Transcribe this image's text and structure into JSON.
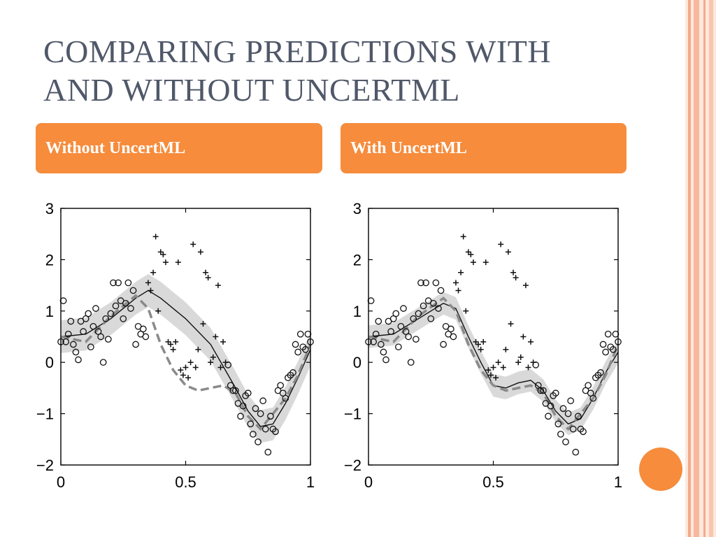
{
  "slide": {
    "title": "COMPARING PREDICTIONS WITH\nAND WITHOUT UNCERTML",
    "colors": {
      "accent": "#f68c3c",
      "title_text": "#505869",
      "edge_light": "#fbd9c8",
      "edge_dark": "#f3a98a"
    },
    "left_header": "Without UncertML",
    "right_header": "With UncertML"
  },
  "chart_data": [
    {
      "type": "scatter",
      "title": "Without UncertML",
      "xlim": [
        0,
        1
      ],
      "ylim": [
        -2,
        3
      ],
      "x_ticks": [
        "0",
        "0.5",
        "1"
      ],
      "y_ticks": [
        "3",
        "2",
        "1",
        "0",
        "−1",
        "−2"
      ],
      "grid": false,
      "series": [
        {
          "marker": "circle",
          "x": [
            0.0,
            0.01,
            0.02,
            0.03,
            0.04,
            0.05,
            0.06,
            0.07,
            0.08,
            0.09,
            0.1,
            0.11,
            0.12,
            0.13,
            0.14,
            0.15,
            0.16,
            0.17,
            0.18,
            0.19,
            0.2,
            0.21,
            0.22,
            0.23,
            0.24,
            0.25,
            0.26,
            0.27,
            0.28,
            0.29,
            0.3,
            0.31,
            0.32,
            0.33,
            0.34,
            0.67,
            0.68,
            0.69,
            0.7,
            0.71,
            0.72,
            0.73,
            0.74,
            0.75,
            0.76,
            0.77,
            0.78,
            0.79,
            0.8,
            0.81,
            0.82,
            0.83,
            0.84,
            0.85,
            0.86,
            0.87,
            0.88,
            0.89,
            0.9,
            0.91,
            0.92,
            0.93,
            0.94,
            0.95,
            0.96,
            0.97,
            0.98,
            0.99,
            1.0
          ],
          "y": [
            0.4,
            1.2,
            0.4,
            0.55,
            0.8,
            0.35,
            0.2,
            0.05,
            0.8,
            0.6,
            0.85,
            0.95,
            0.3,
            0.7,
            1.05,
            0.6,
            0.5,
            0.0,
            0.85,
            0.45,
            0.95,
            1.55,
            1.1,
            1.55,
            1.2,
            0.85,
            1.15,
            1.55,
            1.05,
            1.4,
            0.35,
            0.7,
            0.55,
            0.65,
            0.5,
            -0.05,
            -0.45,
            -0.55,
            -0.55,
            -0.8,
            -1.05,
            -0.85,
            -0.65,
            -0.6,
            -1.2,
            -1.4,
            -0.9,
            -1.55,
            -1.0,
            -0.75,
            -1.3,
            -1.75,
            -1.05,
            -1.3,
            -1.35,
            -0.55,
            -0.45,
            -0.6,
            -0.7,
            -0.3,
            -0.25,
            -0.2,
            0.35,
            0.2,
            0.55,
            0.3,
            0.25,
            0.55,
            0.4
          ]
        },
        {
          "marker": "plus",
          "x": [
            0.35,
            0.36,
            0.37,
            0.38,
            0.39,
            0.4,
            0.41,
            0.42,
            0.43,
            0.44,
            0.45,
            0.46,
            0.47,
            0.48,
            0.49,
            0.5,
            0.51,
            0.52,
            0.53,
            0.54,
            0.55,
            0.56,
            0.57,
            0.58,
            0.59,
            0.6,
            0.61,
            0.62,
            0.63,
            0.64,
            0.65,
            0.66
          ],
          "y": [
            1.55,
            1.4,
            1.75,
            2.45,
            1.0,
            2.15,
            2.1,
            1.95,
            0.4,
            0.35,
            0.25,
            0.4,
            1.95,
            -0.15,
            -0.25,
            -0.1,
            -0.3,
            0.0,
            2.3,
            -0.1,
            0.25,
            2.15,
            0.75,
            1.75,
            1.65,
            0.0,
            0.1,
            0.5,
            1.5,
            -0.1,
            0.4,
            0.0
          ]
        }
      ],
      "lines": [
        {
          "style": "solid",
          "x": [
            0,
            0.1,
            0.2,
            0.3,
            0.35,
            0.4,
            0.5,
            0.6,
            0.7,
            0.75,
            0.8,
            0.85,
            0.9,
            0.95,
            1.0
          ],
          "y": [
            0.5,
            0.55,
            0.85,
            1.25,
            1.4,
            1.25,
            0.85,
            0.35,
            -0.5,
            -0.95,
            -1.25,
            -1.2,
            -0.8,
            -0.3,
            0.25
          ]
        },
        {
          "style": "dashed",
          "x": [
            0,
            0.1,
            0.2,
            0.3,
            0.35,
            0.4,
            0.45,
            0.5,
            0.55,
            0.6,
            0.65,
            0.7,
            0.75,
            0.8,
            0.85,
            0.9,
            0.95,
            1.0
          ],
          "y": [
            0.5,
            0.4,
            0.9,
            1.3,
            1.05,
            0.35,
            -0.15,
            -0.45,
            -0.55,
            -0.5,
            -0.45,
            -0.6,
            -1.05,
            -1.3,
            -1.0,
            -0.7,
            -0.25,
            0.35
          ]
        }
      ],
      "band_halfwidth": 0.32
    },
    {
      "type": "scatter",
      "title": "With UncertML",
      "xlim": [
        0,
        1
      ],
      "ylim": [
        -2,
        3
      ],
      "x_ticks": [
        "0",
        "0.5",
        "1"
      ],
      "y_ticks": [
        "3",
        "2",
        "1",
        "0",
        "−1",
        "−2"
      ],
      "grid": false,
      "series": [
        {
          "marker": "circle",
          "x": [
            0.0,
            0.01,
            0.02,
            0.03,
            0.04,
            0.05,
            0.06,
            0.07,
            0.08,
            0.09,
            0.1,
            0.11,
            0.12,
            0.13,
            0.14,
            0.15,
            0.16,
            0.17,
            0.18,
            0.19,
            0.2,
            0.21,
            0.22,
            0.23,
            0.24,
            0.25,
            0.26,
            0.27,
            0.28,
            0.29,
            0.3,
            0.31,
            0.32,
            0.33,
            0.34,
            0.67,
            0.68,
            0.69,
            0.7,
            0.71,
            0.72,
            0.73,
            0.74,
            0.75,
            0.76,
            0.77,
            0.78,
            0.79,
            0.8,
            0.81,
            0.82,
            0.83,
            0.84,
            0.85,
            0.86,
            0.87,
            0.88,
            0.89,
            0.9,
            0.91,
            0.92,
            0.93,
            0.94,
            0.95,
            0.96,
            0.97,
            0.98,
            0.99,
            1.0
          ],
          "y": [
            0.4,
            1.2,
            0.4,
            0.55,
            0.8,
            0.35,
            0.2,
            0.05,
            0.8,
            0.6,
            0.85,
            0.95,
            0.3,
            0.7,
            1.05,
            0.6,
            0.5,
            0.0,
            0.85,
            0.45,
            0.95,
            1.55,
            1.1,
            1.55,
            1.2,
            0.85,
            1.15,
            1.55,
            1.05,
            1.4,
            0.35,
            0.7,
            0.55,
            0.65,
            0.5,
            -0.05,
            -0.45,
            -0.55,
            -0.55,
            -0.8,
            -1.05,
            -0.85,
            -0.65,
            -0.6,
            -1.2,
            -1.4,
            -0.9,
            -1.55,
            -1.0,
            -0.75,
            -1.3,
            -1.75,
            -1.05,
            -1.3,
            -1.35,
            -0.55,
            -0.45,
            -0.6,
            -0.7,
            -0.3,
            -0.25,
            -0.2,
            0.35,
            0.2,
            0.55,
            0.3,
            0.25,
            0.55,
            0.4
          ]
        },
        {
          "marker": "plus",
          "x": [
            0.35,
            0.36,
            0.37,
            0.38,
            0.39,
            0.4,
            0.41,
            0.42,
            0.43,
            0.44,
            0.45,
            0.46,
            0.47,
            0.48,
            0.49,
            0.5,
            0.51,
            0.52,
            0.53,
            0.54,
            0.55,
            0.56,
            0.57,
            0.58,
            0.59,
            0.6,
            0.61,
            0.62,
            0.63,
            0.64,
            0.65,
            0.66
          ],
          "y": [
            1.55,
            1.4,
            1.75,
            2.45,
            1.0,
            2.15,
            2.1,
            1.95,
            0.4,
            0.35,
            0.25,
            0.4,
            1.95,
            -0.15,
            -0.25,
            -0.1,
            -0.3,
            0.0,
            2.3,
            -0.1,
            0.25,
            2.15,
            0.75,
            1.75,
            1.65,
            0.0,
            0.1,
            0.5,
            1.5,
            -0.1,
            0.4,
            0.0
          ]
        }
      ],
      "lines": [
        {
          "style": "solid",
          "x": [
            0,
            0.1,
            0.2,
            0.3,
            0.35,
            0.4,
            0.45,
            0.5,
            0.55,
            0.6,
            0.65,
            0.7,
            0.75,
            0.8,
            0.85,
            0.9,
            0.95,
            1.0
          ],
          "y": [
            0.5,
            0.55,
            0.85,
            1.15,
            1.05,
            0.5,
            0.0,
            -0.45,
            -0.5,
            -0.4,
            -0.35,
            -0.55,
            -0.95,
            -1.2,
            -1.1,
            -0.7,
            -0.2,
            0.2
          ]
        },
        {
          "style": "dashed",
          "x": [
            0,
            0.1,
            0.2,
            0.3,
            0.35,
            0.4,
            0.45,
            0.5,
            0.55,
            0.6,
            0.65,
            0.7,
            0.75,
            0.8,
            0.85,
            0.9,
            0.95,
            1.0
          ],
          "y": [
            0.5,
            0.4,
            0.9,
            1.25,
            1.0,
            0.35,
            -0.15,
            -0.45,
            -0.55,
            -0.5,
            -0.45,
            -0.6,
            -1.05,
            -1.3,
            -1.0,
            -0.7,
            -0.25,
            0.35
          ]
        }
      ],
      "band_halfwidth": 0.22
    }
  ]
}
